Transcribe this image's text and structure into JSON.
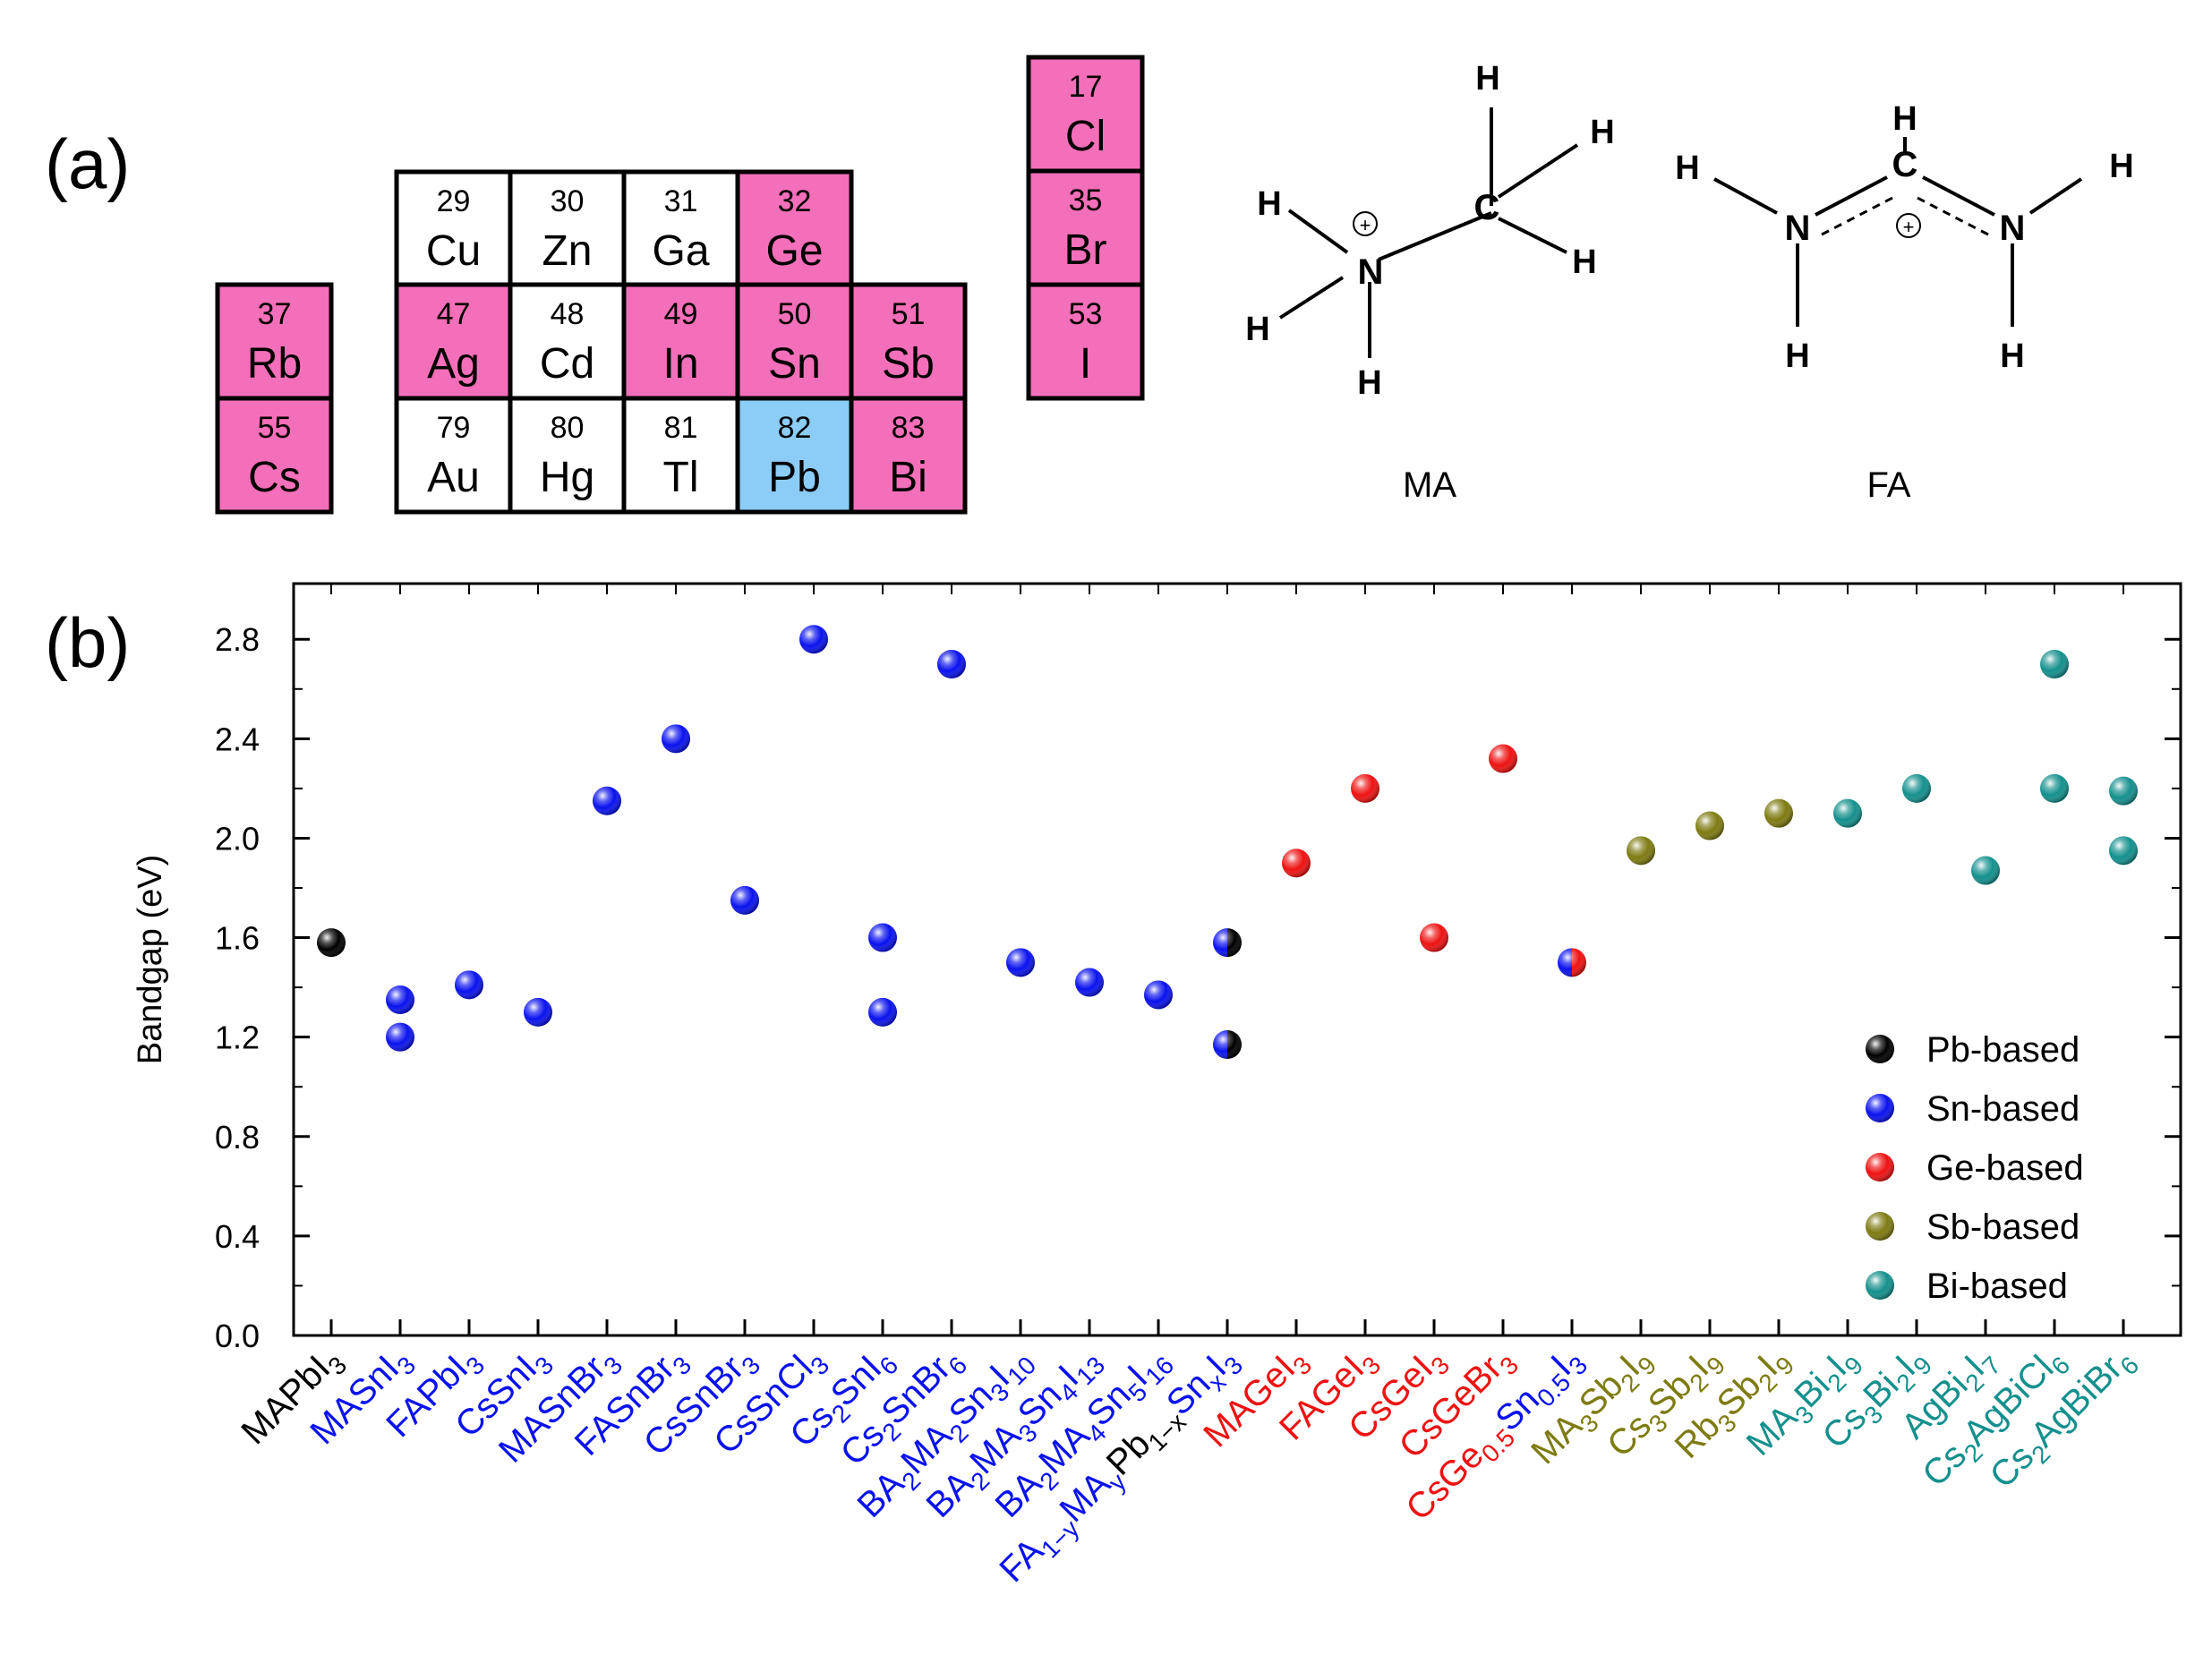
{
  "panel_labels": {
    "a": "(a)",
    "b": "(b)"
  },
  "periodic_table": {
    "highlight_color": "#f46fb9",
    "reference_color": "#8ccdf7",
    "cells": [
      {
        "num": "37",
        "sym": "Rb",
        "state": "highlight"
      },
      {
        "num": "55",
        "sym": "Cs",
        "state": "highlight"
      },
      {
        "num": "29",
        "sym": "Cu",
        "state": "plain"
      },
      {
        "num": "30",
        "sym": "Zn",
        "state": "plain"
      },
      {
        "num": "31",
        "sym": "Ga",
        "state": "plain"
      },
      {
        "num": "32",
        "sym": "Ge",
        "state": "highlight"
      },
      {
        "num": "47",
        "sym": "Ag",
        "state": "highlight"
      },
      {
        "num": "48",
        "sym": "Cd",
        "state": "plain"
      },
      {
        "num": "49",
        "sym": "In",
        "state": "highlight"
      },
      {
        "num": "50",
        "sym": "Sn",
        "state": "highlight"
      },
      {
        "num": "51",
        "sym": "Sb",
        "state": "highlight"
      },
      {
        "num": "79",
        "sym": "Au",
        "state": "plain"
      },
      {
        "num": "80",
        "sym": "Hg",
        "state": "plain"
      },
      {
        "num": "81",
        "sym": "Tl",
        "state": "plain"
      },
      {
        "num": "82",
        "sym": "Pb",
        "state": "reference"
      },
      {
        "num": "83",
        "sym": "Bi",
        "state": "highlight"
      },
      {
        "num": "17",
        "sym": "Cl",
        "state": "highlight"
      },
      {
        "num": "35",
        "sym": "Br",
        "state": "highlight"
      },
      {
        "num": "53",
        "sym": "I",
        "state": "highlight"
      }
    ]
  },
  "molecules": {
    "ma": {
      "label": "MA",
      "atoms": {
        "n": "N",
        "c": "C",
        "h": "H",
        "charge": "+"
      }
    },
    "fa": {
      "label": "FA",
      "atoms": {
        "n": "N",
        "c": "C",
        "h": "H",
        "charge": "+"
      }
    }
  },
  "chart_data": {
    "type": "scatter",
    "ylabel": "Bandgap (eV)",
    "xlabel": "",
    "ylim": [
      0,
      2.95
    ],
    "yticks": [
      "0.0",
      "0.4",
      "0.8",
      "1.2",
      "1.6",
      "2.0",
      "2.4",
      "2.8"
    ],
    "legend_position": "bottom-right",
    "series_colors": {
      "Pb-based": "#000000",
      "Sn-based": "#0a12ee",
      "Ge-based": "#ee1212",
      "Sb-based": "#7e7b12",
      "Bi-based": "#14908d"
    },
    "legend": [
      "Pb-based",
      "Sn-based",
      "Ge-based",
      "Sb-based",
      "Bi-based"
    ],
    "categories": [
      {
        "series": "Pb-based",
        "parts": [
          [
            "MAPbI",
            ""
          ],
          [
            "3",
            "sub"
          ]
        ]
      },
      {
        "series": "Sn-based",
        "parts": [
          [
            "MASnI",
            ""
          ],
          [
            "3",
            "sub"
          ]
        ]
      },
      {
        "series": "Sn-based",
        "parts": [
          [
            "FAPbI",
            ""
          ],
          [
            "3",
            "sub"
          ]
        ]
      },
      {
        "series": "Sn-based",
        "parts": [
          [
            "CsSnI",
            ""
          ],
          [
            "3",
            "sub"
          ]
        ]
      },
      {
        "series": "Sn-based",
        "parts": [
          [
            "MASnBr",
            ""
          ],
          [
            "3",
            "sub"
          ]
        ]
      },
      {
        "series": "Sn-based",
        "parts": [
          [
            "FASnBr",
            ""
          ],
          [
            "3",
            "sub"
          ]
        ]
      },
      {
        "series": "Sn-based",
        "parts": [
          [
            "CsSnBr",
            ""
          ],
          [
            "3",
            "sub"
          ]
        ]
      },
      {
        "series": "Sn-based",
        "parts": [
          [
            "CsSnCl",
            ""
          ],
          [
            "3",
            "sub"
          ]
        ]
      },
      {
        "series": "Sn-based",
        "parts": [
          [
            "Cs",
            ""
          ],
          [
            "2",
            "sub"
          ],
          [
            "SnI",
            ""
          ],
          [
            "6",
            "sub"
          ]
        ]
      },
      {
        "series": "Sn-based",
        "parts": [
          [
            "Cs",
            ""
          ],
          [
            "2",
            "sub"
          ],
          [
            "SnBr",
            ""
          ],
          [
            "6",
            "sub"
          ]
        ]
      },
      {
        "series": "Sn-based",
        "parts": [
          [
            "BA",
            ""
          ],
          [
            "2",
            "sub"
          ],
          [
            "MA",
            ""
          ],
          [
            "2",
            "sub"
          ],
          [
            "Sn",
            ""
          ],
          [
            "3",
            "sub"
          ],
          [
            "I",
            ""
          ],
          [
            "10",
            "sub"
          ]
        ]
      },
      {
        "series": "Sn-based",
        "parts": [
          [
            "BA",
            ""
          ],
          [
            "2",
            "sub"
          ],
          [
            "MA",
            ""
          ],
          [
            "3",
            "sub"
          ],
          [
            "Sn",
            ""
          ],
          [
            "4",
            "sub"
          ],
          [
            "I",
            ""
          ],
          [
            "13",
            "sub"
          ]
        ]
      },
      {
        "series": "Sn-based",
        "parts": [
          [
            "BA",
            ""
          ],
          [
            "2",
            "sub"
          ],
          [
            "MA",
            ""
          ],
          [
            "4",
            "sub"
          ],
          [
            "Sn",
            ""
          ],
          [
            "5",
            "sub"
          ],
          [
            "I",
            ""
          ],
          [
            "16",
            "sub"
          ]
        ]
      },
      {
        "series": "Mixed",
        "parts": [
          [
            "FA",
            ""
          ],
          [
            "1−y",
            "sub"
          ],
          [
            "MA",
            ""
          ],
          [
            "y",
            "sub"
          ],
          [
            "Pb",
            "black"
          ],
          [
            "1−x",
            "sub-black"
          ],
          [
            "Sn",
            ""
          ],
          [
            "x",
            "sub"
          ],
          [
            "I",
            ""
          ],
          [
            "3",
            "sub"
          ]
        ]
      },
      {
        "series": "Ge-based",
        "parts": [
          [
            "MAGeI",
            ""
          ],
          [
            "3",
            "sub"
          ]
        ]
      },
      {
        "series": "Ge-based",
        "parts": [
          [
            "FAGeI",
            ""
          ],
          [
            "3",
            "sub"
          ]
        ]
      },
      {
        "series": "Ge-based",
        "parts": [
          [
            "CsGeI",
            ""
          ],
          [
            "3",
            "sub"
          ]
        ]
      },
      {
        "series": "Ge-based",
        "parts": [
          [
            "CsGeBr",
            ""
          ],
          [
            "3",
            "sub"
          ]
        ]
      },
      {
        "series": "Ge-based",
        "parts": [
          [
            "CsGe",
            ""
          ],
          [
            "0.5",
            "sub"
          ],
          [
            "Sn",
            "blue"
          ],
          [
            "0.5",
            "sub-blue"
          ],
          [
            "I",
            "blue"
          ],
          [
            "3",
            "sub-blue"
          ]
        ]
      },
      {
        "series": "Sb-based",
        "parts": [
          [
            "MA",
            ""
          ],
          [
            "3",
            "sub"
          ],
          [
            "Sb",
            ""
          ],
          [
            "2",
            "sub"
          ],
          [
            "I",
            ""
          ],
          [
            "9",
            "sub"
          ]
        ]
      },
      {
        "series": "Sb-based",
        "parts": [
          [
            "Cs",
            ""
          ],
          [
            "3",
            "sub"
          ],
          [
            "Sb",
            ""
          ],
          [
            "2",
            "sub"
          ],
          [
            "I",
            ""
          ],
          [
            "9",
            "sub"
          ]
        ]
      },
      {
        "series": "Sb-based",
        "parts": [
          [
            "Rb",
            ""
          ],
          [
            "3",
            "sub"
          ],
          [
            "Sb",
            ""
          ],
          [
            "2",
            "sub"
          ],
          [
            "I",
            ""
          ],
          [
            "9",
            "sub"
          ]
        ]
      },
      {
        "series": "Bi-based",
        "parts": [
          [
            "MA",
            ""
          ],
          [
            "3",
            "sub"
          ],
          [
            "Bi",
            ""
          ],
          [
            "2",
            "sub"
          ],
          [
            "I",
            ""
          ],
          [
            "9",
            "sub"
          ]
        ]
      },
      {
        "series": "Bi-based",
        "parts": [
          [
            "Cs",
            ""
          ],
          [
            "3",
            "sub"
          ],
          [
            "Bi",
            ""
          ],
          [
            "2",
            "sub"
          ],
          [
            "I",
            ""
          ],
          [
            "9",
            "sub"
          ]
        ]
      },
      {
        "series": "Bi-based",
        "parts": [
          [
            "AgBi",
            ""
          ],
          [
            "2",
            "sub"
          ],
          [
            "I",
            ""
          ],
          [
            "7",
            "sub"
          ]
        ]
      },
      {
        "series": "Bi-based",
        "parts": [
          [
            "Cs",
            ""
          ],
          [
            "2",
            "sub"
          ],
          [
            "AgBiCl",
            ""
          ],
          [
            "6",
            "sub"
          ]
        ]
      },
      {
        "series": "Bi-based",
        "parts": [
          [
            "Cs",
            ""
          ],
          [
            "2",
            "sub"
          ],
          [
            "AgBiBr",
            ""
          ],
          [
            "6",
            "sub"
          ]
        ]
      }
    ],
    "points": [
      {
        "x": 0,
        "y": 1.58,
        "series": "Pb-based"
      },
      {
        "x": 1,
        "y": 1.35,
        "series": "Sn-based"
      },
      {
        "x": 1,
        "y": 1.2,
        "series": "Sn-based"
      },
      {
        "x": 2,
        "y": 1.41,
        "series": "Sn-based"
      },
      {
        "x": 3,
        "y": 1.3,
        "series": "Sn-based"
      },
      {
        "x": 4,
        "y": 2.15,
        "series": "Sn-based"
      },
      {
        "x": 5,
        "y": 2.4,
        "series": "Sn-based"
      },
      {
        "x": 6,
        "y": 1.75,
        "series": "Sn-based"
      },
      {
        "x": 7,
        "y": 2.8,
        "series": "Sn-based"
      },
      {
        "x": 8,
        "y": 1.6,
        "series": "Sn-based"
      },
      {
        "x": 8,
        "y": 1.3,
        "series": "Sn-based"
      },
      {
        "x": 9,
        "y": 2.7,
        "series": "Sn-based"
      },
      {
        "x": 10,
        "y": 1.5,
        "series": "Sn-based"
      },
      {
        "x": 11,
        "y": 1.42,
        "series": "Sn-based"
      },
      {
        "x": 12,
        "y": 1.37,
        "series": "Sn-based"
      },
      {
        "x": 13,
        "y": 1.58,
        "series": "Sn-based",
        "split": "Pb-based"
      },
      {
        "x": 13,
        "y": 1.17,
        "series": "Sn-based",
        "split": "Pb-based"
      },
      {
        "x": 14,
        "y": 1.9,
        "series": "Ge-based"
      },
      {
        "x": 15,
        "y": 2.2,
        "series": "Ge-based"
      },
      {
        "x": 16,
        "y": 1.6,
        "series": "Ge-based"
      },
      {
        "x": 17,
        "y": 2.32,
        "series": "Ge-based"
      },
      {
        "x": 18,
        "y": 1.5,
        "series": "Sn-based",
        "split": "Ge-based"
      },
      {
        "x": 19,
        "y": 1.95,
        "series": "Sb-based"
      },
      {
        "x": 20,
        "y": 2.05,
        "series": "Sb-based"
      },
      {
        "x": 21,
        "y": 2.1,
        "series": "Sb-based"
      },
      {
        "x": 22,
        "y": 2.1,
        "series": "Bi-based"
      },
      {
        "x": 23,
        "y": 2.2,
        "series": "Bi-based"
      },
      {
        "x": 24,
        "y": 1.87,
        "series": "Bi-based"
      },
      {
        "x": 25,
        "y": 2.7,
        "series": "Bi-based"
      },
      {
        "x": 25,
        "y": 2.2,
        "series": "Bi-based"
      },
      {
        "x": 26,
        "y": 2.19,
        "series": "Bi-based"
      },
      {
        "x": 26,
        "y": 1.95,
        "series": "Bi-based"
      }
    ]
  }
}
